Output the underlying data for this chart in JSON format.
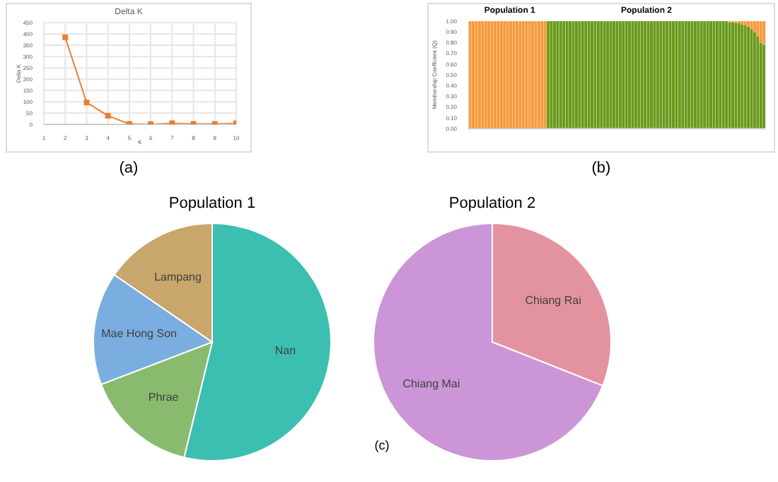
{
  "chart_data": [
    {
      "type": "line",
      "title": "Delta K",
      "xlabel": "K",
      "ylabel": "Delta K",
      "x": [
        2,
        3,
        4,
        5,
        6,
        7,
        8,
        9,
        10
      ],
      "series": [
        {
          "color": "#ed7d31",
          "values": [
            385,
            97,
            38,
            2,
            1,
            5,
            2,
            2,
            5
          ]
        }
      ],
      "xlim": [
        1,
        10
      ],
      "xticks": [
        1,
        2,
        3,
        4,
        5,
        6,
        7,
        8,
        9,
        10
      ],
      "ylim": [
        0,
        450
      ],
      "yticks": [
        0,
        50,
        100,
        150,
        200,
        250,
        300,
        350,
        400,
        450
      ],
      "grid": true,
      "marker": "square",
      "annotations": [
        "(a)"
      ]
    },
    {
      "type": "bar",
      "stacked": true,
      "ylabel": "Membership Coefficient (Q)",
      "tick_labels": "y",
      "categories": [
        null,
        null,
        null,
        null,
        null,
        null,
        null,
        null,
        null,
        null,
        null,
        null,
        null,
        null,
        null,
        null,
        null,
        null,
        null,
        null,
        null,
        null,
        null,
        null,
        null,
        null,
        null,
        null,
        null,
        null,
        null,
        null,
        null,
        null,
        null,
        null,
        null,
        null,
        null,
        null,
        null,
        null,
        null,
        null,
        null,
        null,
        null,
        null,
        null,
        null,
        null,
        null,
        null,
        null,
        null,
        null,
        null,
        null,
        null,
        null,
        null,
        null,
        null,
        null,
        null,
        null,
        null,
        null,
        null,
        null,
        null,
        null,
        null,
        null,
        null,
        null,
        null,
        null,
        null,
        null,
        null,
        null,
        null,
        null,
        null,
        null,
        null,
        null,
        null,
        null,
        null,
        null,
        null,
        null,
        null
      ],
      "series": [
        {
          "color": "#6a9a1c",
          "values": [
            0,
            0,
            0,
            0,
            0,
            0,
            0,
            0,
            0,
            0,
            0,
            0,
            0,
            0,
            0,
            0,
            0,
            0,
            0,
            0,
            0,
            0,
            0,
            0,
            0,
            1,
            1,
            1,
            1,
            1,
            1,
            1,
            1,
            1,
            1,
            1,
            1,
            1,
            1,
            1,
            1,
            1,
            1,
            1,
            1,
            1,
            1,
            1,
            1,
            1,
            1,
            1,
            1,
            1,
            1,
            1,
            1,
            1,
            1,
            1,
            1,
            1,
            1,
            1,
            1,
            1,
            1,
            1,
            1,
            1,
            1,
            1,
            1,
            1,
            1,
            1,
            1,
            1,
            1,
            1,
            1,
            1,
            1,
            0.99,
            0.99,
            0.98,
            0.98,
            0.97,
            0.96,
            0.95,
            0.93,
            0.9,
            0.86,
            0.8,
            0.78
          ]
        },
        {
          "color": "#f79a3c",
          "values": [
            1,
            1,
            1,
            1,
            1,
            1,
            1,
            1,
            1,
            1,
            1,
            1,
            1,
            1,
            1,
            1,
            1,
            1,
            1,
            1,
            1,
            1,
            1,
            1,
            1,
            0,
            0,
            0,
            0,
            0,
            0,
            0,
            0,
            0,
            0,
            0,
            0,
            0,
            0,
            0,
            0,
            0,
            0,
            0,
            0,
            0,
            0,
            0,
            0,
            0,
            0,
            0,
            0,
            0,
            0,
            0,
            0,
            0,
            0,
            0,
            0,
            0,
            0,
            0,
            0,
            0,
            0,
            0,
            0,
            0,
            0,
            0,
            0,
            0,
            0,
            0,
            0,
            0,
            0,
            0,
            0,
            0,
            0,
            0.01,
            0.01,
            0.02,
            0.02,
            0.03,
            0.04,
            0.05,
            0.07,
            0.1,
            0.14,
            0.2,
            0.22
          ]
        }
      ],
      "ylim": [
        0,
        1
      ],
      "yticks": [
        {
          "value": 0,
          "label": "0.00"
        },
        {
          "value": 0.1,
          "label": "0.10"
        },
        {
          "value": 0.2,
          "label": "0.20"
        },
        {
          "value": 0.3,
          "label": "0.30"
        },
        {
          "value": 0.4,
          "label": "0.40"
        },
        {
          "value": 0.5,
          "label": "0.50"
        },
        {
          "value": 0.6,
          "label": "0.60"
        },
        {
          "value": 0.7,
          "label": "0.70"
        },
        {
          "value": 0.8,
          "label": "0.80"
        },
        {
          "value": 0.9,
          "label": "0.90"
        },
        {
          "value": 1,
          "label": "1.00"
        }
      ],
      "annotations": [
        "Population 1",
        "Population 2",
        "(b)"
      ]
    },
    {
      "type": "pie",
      "title": "Population 1",
      "categories": [
        "Nan",
        "Phrae",
        "Mae Hong Son",
        "Lampang"
      ],
      "values": [
        53.8,
        15.4,
        15.4,
        15.4
      ],
      "colors": [
        "#3bbfb0",
        "#8aba6e",
        "#7aaee0",
        "#c9a66b"
      ],
      "annotations": [
        "(c)"
      ]
    },
    {
      "type": "pie",
      "title": "Population 2",
      "categories": [
        "Chiang Rai",
        "Chiang Mai"
      ],
      "values": [
        31,
        69
      ],
      "colors": [
        "#e393a0",
        "#cc95d8"
      ]
    }
  ]
}
